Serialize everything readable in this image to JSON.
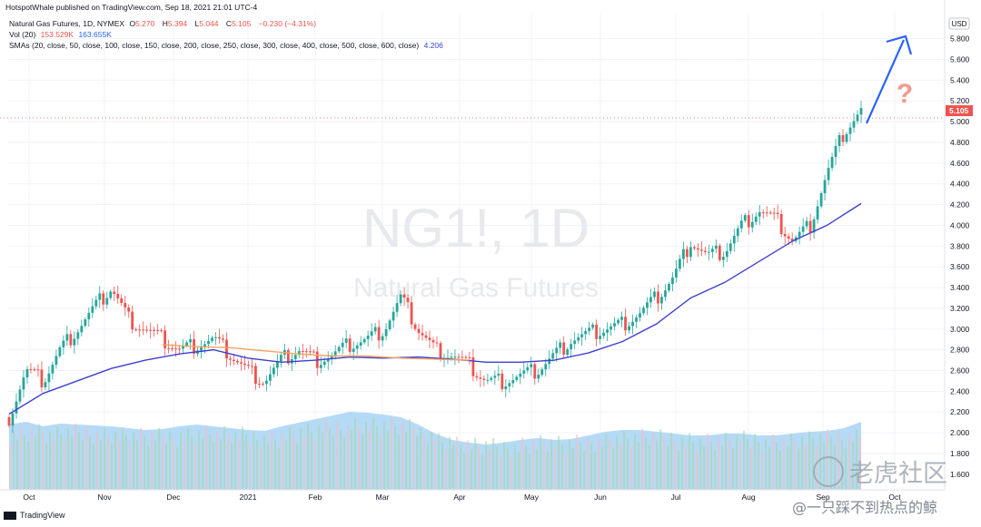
{
  "header": "HotspotWhale published on TradingView.com, Sep 18, 2021 21:01 UTC-4",
  "legend": {
    "symbol": "Natural Gas Futures, 1D, NYMEX",
    "o_label": "O",
    "o": "5.270",
    "h_label": "H",
    "h": "5.394",
    "l_label": "L",
    "l": "5.044",
    "c_label": "C",
    "c": "5.105",
    "change": "−0.230 (−4.31%)",
    "vol_label": "Vol (20)",
    "vol1": "153.529K",
    "vol2": "163.655K",
    "sma_label": "SMAs (20, close, 50, close, 100, close, 150, close, 200, close, 250, close, 300, close, 400, close, 500, close, 600, close)",
    "sma_value": "4.206"
  },
  "watermark": {
    "ticker": "NG1!, 1D",
    "name": "Natural Gas Futures"
  },
  "annotation": {
    "question": "?"
  },
  "currency": "USD",
  "price_label": "5.105",
  "footer": "TradingView",
  "brand_watermark": {
    "line1": "老虎社区",
    "line2": "@一只踩不到热点的鲸"
  },
  "colors": {
    "up": "#26a69a",
    "down": "#ef5350",
    "sma100": "#3f3fcf",
    "sma200": "#f7a35c",
    "volume": "#a8d4f5",
    "arrow": "#2962ff",
    "question": "#f19a8a"
  },
  "chart_data": {
    "type": "candlestick",
    "y_axis": {
      "min": 1.45,
      "max": 6.05,
      "ticks": [
        "5.800",
        "5.600",
        "5.400",
        "5.200",
        "5.000",
        "4.800",
        "4.600",
        "4.400",
        "4.200",
        "4.000",
        "3.800",
        "3.600",
        "3.400",
        "3.200",
        "3.000",
        "2.800",
        "2.600",
        "2.400",
        "2.200",
        "2.000",
        "1.800"
      ],
      "extra_tick": "1.600"
    },
    "x_labels": [
      "Oct",
      "Nov",
      "Dec",
      "2021",
      "Feb",
      "Mar",
      "Apr",
      "May",
      "Jun",
      "Jul",
      "Aug",
      "Sep",
      "Oct"
    ],
    "series": [
      {
        "x": [
          0,
          5,
          10,
          15,
          20,
          25,
          30,
          35,
          40,
          45,
          50,
          55,
          60,
          65,
          70,
          75,
          80,
          85,
          90,
          95,
          100,
          105,
          110,
          115,
          120,
          125,
          130,
          135,
          140,
          145,
          150,
          155,
          160,
          165,
          170,
          175,
          180,
          185,
          190,
          195,
          200,
          205,
          210,
          215,
          220,
          225,
          230,
          235,
          240,
          245,
          250
        ],
        "y": [
          2.15,
          2.6,
          2.5,
          2.8,
          3.0,
          3.2,
          3.4,
          3.1,
          3.0,
          2.9,
          2.8,
          2.85,
          2.9,
          2.75,
          2.6,
          2.5,
          2.7,
          2.8,
          2.7,
          2.75,
          2.85,
          2.9,
          3.0,
          3.3,
          3.0,
          2.8,
          2.75,
          2.65,
          2.5,
          2.5,
          2.55,
          2.6,
          2.75,
          2.9,
          2.95,
          3.0,
          3.05,
          3.15,
          3.3,
          3.5,
          3.85,
          3.7,
          3.75,
          4.0,
          4.15,
          4.05,
          3.85,
          4.0,
          4.5,
          4.9,
          5.1
        ]
      },
      {
        "name": "SMA 100",
        "x": [
          0,
          10,
          20,
          30,
          40,
          50,
          60,
          70,
          80,
          90,
          100,
          110,
          120,
          130,
          140,
          150,
          160,
          170,
          180,
          190,
          200,
          210,
          220,
          230,
          240,
          250
        ],
        "y": [
          2.18,
          2.38,
          2.5,
          2.62,
          2.7,
          2.76,
          2.8,
          2.72,
          2.68,
          2.7,
          2.73,
          2.72,
          2.73,
          2.71,
          2.68,
          2.68,
          2.7,
          2.77,
          2.88,
          3.05,
          3.3,
          3.45,
          3.65,
          3.85,
          4.0,
          4.21
        ]
      },
      {
        "name": "SMA 200",
        "x": [
          45,
          55,
          65,
          75,
          85,
          95,
          105,
          115,
          125,
          135
        ],
        "y": [
          2.85,
          2.83,
          2.82,
          2.79,
          2.76,
          2.74,
          2.74,
          2.72,
          2.71,
          2.7
        ]
      }
    ],
    "volume_pct": [
      0.72,
      0.75,
      0.7,
      0.73,
      0.72,
      0.71,
      0.7,
      0.68,
      0.66,
      0.67,
      0.7,
      0.72,
      0.7,
      0.68,
      0.66,
      0.65,
      0.7,
      0.74,
      0.78,
      0.82,
      0.86,
      0.85,
      0.83,
      0.8,
      0.72,
      0.62,
      0.55,
      0.52,
      0.5,
      0.52,
      0.55,
      0.57,
      0.55,
      0.56,
      0.6,
      0.64,
      0.66,
      0.66,
      0.64,
      0.62,
      0.6,
      0.6,
      0.62,
      0.62,
      0.6,
      0.6,
      0.62,
      0.64,
      0.65,
      0.68,
      0.75
    ]
  }
}
